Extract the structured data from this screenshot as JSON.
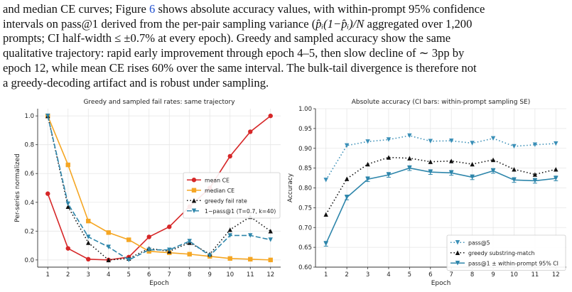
{
  "paragraph": {
    "line1_a": "and median CE curves; Figure ",
    "line1_ref": "6",
    "line1_b": " shows absolute accuracy values, with within-prompt 95% confidence",
    "line2_a": "intervals on pass@1 derived from the per-pair sampling variance (",
    "line2_math": "p̂ᵢ(1−p̂ᵢ)/N",
    "line2_b": " aggregated over 1,200",
    "line3": "prompts; CI half-width ≤ ±0.7% at every epoch). Greedy and sampled accuracy show the same",
    "line4": "qualitative trajectory: rapid early improvement through epoch 4–5, then slow decline of ∼ 3pp by",
    "line5": "epoch 12, while mean CE rises 60% over the same interval. The bulk-tail divergence is therefore not",
    "line6": "a greedy-decoding artifact and is robust under sampling."
  },
  "colors": {
    "mean_ce": "#d62728",
    "median_ce": "#f5a623",
    "greedy": "#111111",
    "pass1": "#2e86ab",
    "pass5": "#3a8fb7"
  },
  "chart_data": [
    {
      "type": "line",
      "title": "Greedy and sampled fail rates: same trajectory",
      "xlabel": "Epoch",
      "ylabel": "Per-series normalized",
      "x": [
        1,
        2,
        3,
        4,
        5,
        6,
        7,
        8,
        9,
        10,
        11,
        12
      ],
      "xlim": [
        0.5,
        12.5
      ],
      "ylim": [
        -0.05,
        1.05
      ],
      "yticks": [
        "0.0",
        "0.2",
        "0.4",
        "0.6",
        "0.8",
        "1.0"
      ],
      "grid": true,
      "legend": "center-right",
      "series": [
        {
          "name": "mean CE",
          "style": "solid-circle",
          "color": "#d62728",
          "values": [
            0.46,
            0.08,
            0.005,
            0.0,
            0.02,
            0.16,
            0.23,
            0.37,
            0.5,
            0.72,
            0.89,
            1.0
          ]
        },
        {
          "name": "median CE",
          "style": "solid-square",
          "color": "#f5a623",
          "values": [
            1.0,
            0.66,
            0.27,
            0.19,
            0.14,
            0.06,
            0.05,
            0.04,
            0.025,
            0.01,
            0.005,
            0.0
          ]
        },
        {
          "name": "greedy fail rate",
          "style": "dotted-triangle",
          "color": "#111111",
          "values": [
            1.0,
            0.37,
            0.12,
            0.0,
            0.01,
            0.08,
            0.06,
            0.12,
            0.04,
            0.21,
            0.3,
            0.2
          ]
        },
        {
          "name": "1−pass@1 (T=0.7, k=40)",
          "style": "dashed-triangle-down",
          "color": "#2e86ab",
          "values": [
            1.0,
            0.39,
            0.16,
            0.09,
            0.0,
            0.07,
            0.07,
            0.13,
            0.03,
            0.17,
            0.17,
            0.14
          ]
        }
      ]
    },
    {
      "type": "line",
      "title": "Absolute accuracy (CI bars: within-prompt sampling SE)",
      "xlabel": "Epoch",
      "ylabel": "Accuracy",
      "x": [
        1,
        2,
        3,
        4,
        5,
        6,
        7,
        8,
        9,
        10,
        11,
        12
      ],
      "xlim": [
        0.5,
        12.5
      ],
      "ylim": [
        0.6,
        1.0
      ],
      "yticks": [
        "0.60",
        "0.65",
        "0.70",
        "0.75",
        "0.80",
        "0.85",
        "0.90",
        "0.95",
        "1.00"
      ],
      "grid": true,
      "legend": "bottom-right",
      "series": [
        {
          "name": "pass@5",
          "style": "dotted-triangle-down",
          "color": "#3a8fb7",
          "values": [
            0.82,
            0.907,
            0.917,
            0.922,
            0.932,
            0.918,
            0.919,
            0.913,
            0.925,
            0.905,
            0.909,
            0.912
          ]
        },
        {
          "name": "greedy substring-match",
          "style": "dotted-triangle",
          "color": "#111111",
          "values": [
            0.733,
            0.823,
            0.86,
            0.877,
            0.875,
            0.866,
            0.868,
            0.86,
            0.871,
            0.847,
            0.834,
            0.847
          ]
        },
        {
          "name": "pass@1 ± within-prompt 95% CI",
          "style": "solid-triangle-down-errorbar",
          "color": "#2e86ab",
          "values": [
            0.659,
            0.776,
            0.822,
            0.833,
            0.85,
            0.84,
            0.838,
            0.827,
            0.843,
            0.82,
            0.818,
            0.824
          ],
          "ci": 0.006
        }
      ]
    }
  ]
}
